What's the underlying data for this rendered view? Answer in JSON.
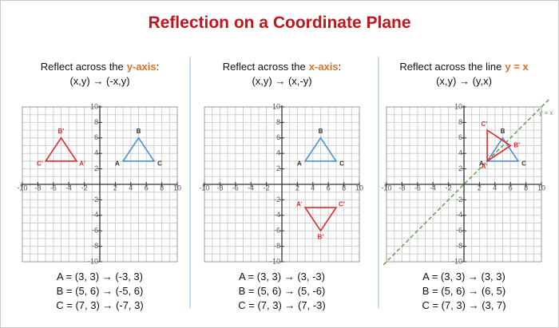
{
  "title": "Reflection on a Coordinate Plane",
  "panels": [
    {
      "heading": "Reflect across the",
      "heading_emph": "y-axis",
      "heading_suffix": ":",
      "rule": "(x,y) → (-x,y)",
      "xlim": [
        -10,
        10
      ],
      "ylim": [
        -10,
        10
      ],
      "xticks": [
        -10,
        -8,
        -6,
        -4,
        -2,
        2,
        4,
        6,
        8,
        10
      ],
      "yticks": [
        10,
        8,
        6,
        4,
        2,
        -2,
        -4,
        -6,
        -8,
        -10
      ],
      "original": {
        "color": "#4a8fd8",
        "labels": [
          "A",
          "B",
          "C"
        ],
        "points": [
          [
            3,
            3
          ],
          [
            5,
            6
          ],
          [
            7,
            3
          ]
        ]
      },
      "image": {
        "color": "#e8262b",
        "labels": [
          "A’",
          "B’",
          "C’"
        ],
        "points": [
          [
            -3,
            3
          ],
          [
            -5,
            6
          ],
          [
            -7,
            3
          ]
        ]
      },
      "equations": [
        "A = (3, 3) → (-3, 3)",
        "B = (5, 6) → (-5, 6)",
        "C = (7, 3) → (-7, 3)"
      ]
    },
    {
      "heading": "Reflect across the",
      "heading_emph": "x-axis",
      "heading_suffix": ":",
      "rule": "(x,y) → (x,-y)",
      "xlim": [
        -10,
        10
      ],
      "ylim": [
        -10,
        10
      ],
      "xticks": [
        -10,
        -8,
        -6,
        -4,
        -2,
        2,
        4,
        6,
        8,
        10
      ],
      "yticks": [
        10,
        8,
        6,
        4,
        2,
        -2,
        -4,
        -6,
        -8,
        -10
      ],
      "original": {
        "color": "#4a8fd8",
        "labels": [
          "A",
          "B",
          "C"
        ],
        "points": [
          [
            3,
            3
          ],
          [
            5,
            6
          ],
          [
            7,
            3
          ]
        ]
      },
      "image": {
        "color": "#e8262b",
        "labels": [
          "A’",
          "B’",
          "C’"
        ],
        "points": [
          [
            3,
            -3
          ],
          [
            5,
            -6
          ],
          [
            7,
            -3
          ]
        ]
      },
      "equations": [
        "A = (3, 3) → (3, -3)",
        "B = (5, 6) → (5, -6)",
        "C = (7, 3) → (7, -3)"
      ]
    },
    {
      "heading": "Reflect across the line",
      "heading_emph": "y = x",
      "rule": "(x,y) → (y,x)",
      "xlim": [
        -10,
        10
      ],
      "ylim": [
        -10,
        10
      ],
      "xticks": [
        -10,
        -8,
        -6,
        -4,
        -2,
        2,
        4,
        6,
        8,
        10
      ],
      "yticks": [
        10,
        8,
        6,
        4,
        2,
        -2,
        -4,
        -6,
        -8,
        -10
      ],
      "original": {
        "color": "#4a8fd8",
        "labels": [
          "A",
          "B",
          "C"
        ],
        "points": [
          [
            3,
            3
          ],
          [
            5,
            6
          ],
          [
            7,
            3
          ]
        ]
      },
      "image": {
        "color": "#e8262b",
        "labels": [
          "A’",
          "B’",
          "C’"
        ],
        "points": [
          [
            3,
            3
          ],
          [
            6,
            5
          ],
          [
            3,
            7
          ]
        ]
      },
      "line_label": "y = x",
      "line_color": "#5c9a3c",
      "equations": [
        "A = (3, 3) → (3, 3)",
        "B = (5, 6) → (6, 5)",
        "C = (7, 3) → (3, 7)"
      ]
    }
  ]
}
